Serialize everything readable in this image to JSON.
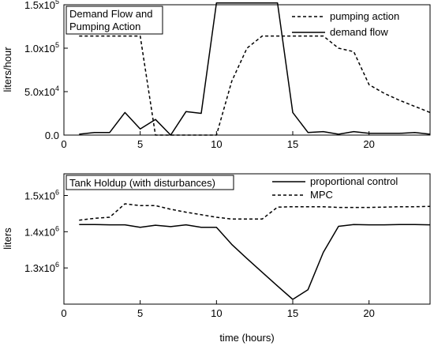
{
  "chart_data": [
    {
      "type": "line",
      "title_lines": [
        "Demand Flow and",
        "Pumping Action"
      ],
      "xlabel": "",
      "ylabel": "liters/hour",
      "xlim": [
        0,
        24
      ],
      "ylim": [
        0,
        150000
      ],
      "x_ticks": [
        0,
        5,
        10,
        15,
        20
      ],
      "y_ticks": [
        {
          "value": 0,
          "mantissa": "0.0",
          "exp": ""
        },
        {
          "value": 50000,
          "mantissa": "5.0x10",
          "exp": "4"
        },
        {
          "value": 100000,
          "mantissa": "1.0x10",
          "exp": "5"
        },
        {
          "value": 150000,
          "mantissa": "1.5x10",
          "exp": "5"
        }
      ],
      "legend_position": "top-right",
      "series": [
        {
          "name": "pumping action",
          "style": "dashed",
          "x": [
            1,
            2,
            3,
            4,
            5,
            6,
            7,
            8,
            9,
            10,
            11,
            12,
            13,
            14,
            15,
            16,
            17,
            18,
            19,
            20,
            21,
            22,
            23,
            24
          ],
          "y": [
            114000,
            114000,
            114000,
            114000,
            114000,
            0,
            0,
            0,
            0,
            0,
            62000,
            100000,
            114000,
            114000,
            114000,
            114000,
            114000,
            100000,
            96000,
            58000,
            48000,
            40000,
            33000,
            26000
          ]
        },
        {
          "name": "demand flow",
          "style": "solid",
          "x": [
            1,
            2,
            3,
            4,
            5,
            6,
            7,
            8,
            9,
            10,
            11,
            12,
            13,
            14,
            15,
            16,
            17,
            18,
            19,
            20,
            21,
            22,
            23,
            24
          ],
          "y": [
            1000,
            3000,
            3000,
            26000,
            7000,
            18000,
            0,
            27000,
            25000,
            152000,
            152000,
            152000,
            152000,
            152000,
            26000,
            3000,
            4000,
            1000,
            4000,
            2000,
            2000,
            2000,
            3000,
            1000
          ]
        }
      ]
    },
    {
      "type": "line",
      "title_lines": [
        "Tank Holdup (with disturbances)"
      ],
      "xlabel": "time (hours)",
      "ylabel": "liters",
      "xlim": [
        0,
        24
      ],
      "ylim": [
        1200000,
        1560000
      ],
      "x_ticks": [
        0,
        5,
        10,
        15,
        20
      ],
      "y_ticks": [
        {
          "value": 1300000,
          "mantissa": "1.3x10",
          "exp": "6"
        },
        {
          "value": 1400000,
          "mantissa": "1.4x10",
          "exp": "6"
        },
        {
          "value": 1500000,
          "mantissa": "1.5x10",
          "exp": "6"
        }
      ],
      "legend_position": "top-right",
      "series": [
        {
          "name": "proportional control",
          "style": "solid",
          "x": [
            1,
            2,
            3,
            4,
            5,
            6,
            7,
            8,
            9,
            10,
            11,
            12,
            13,
            14,
            15,
            16,
            17,
            18,
            19,
            20,
            21,
            22,
            23,
            24
          ],
          "y": [
            1420000,
            1420000,
            1419000,
            1419000,
            1412000,
            1418000,
            1414000,
            1419000,
            1412000,
            1412000,
            1365000,
            1326000,
            1288000,
            1250000,
            1213000,
            1240000,
            1343000,
            1415000,
            1420000,
            1419000,
            1419000,
            1420000,
            1420000,
            1419000
          ]
        },
        {
          "name": "MPC",
          "style": "dashed",
          "x": [
            1,
            2,
            3,
            4,
            5,
            6,
            7,
            8,
            9,
            10,
            11,
            12,
            13,
            14,
            15,
            16,
            17,
            18,
            19,
            20,
            21,
            22,
            23,
            24
          ],
          "y": [
            1432000,
            1437000,
            1440000,
            1477000,
            1472000,
            1472000,
            1462000,
            1454000,
            1447000,
            1440000,
            1435000,
            1435000,
            1435000,
            1468000,
            1469000,
            1469000,
            1469000,
            1467000,
            1467000,
            1467000,
            1468000,
            1469000,
            1469000,
            1470000
          ]
        }
      ]
    }
  ]
}
